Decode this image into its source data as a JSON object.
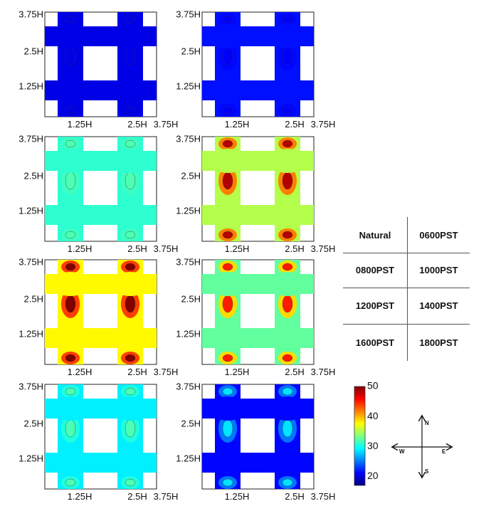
{
  "chart_data": {
    "type": "heatmap",
    "panels": [
      {
        "condition": "Natural",
        "level": 0.1,
        "hot": 0.1
      },
      {
        "condition": "0600PST",
        "level": 0.14,
        "hot": 0.12
      },
      {
        "condition": "0800PST",
        "level": 0.42,
        "hot": 0.45
      },
      {
        "condition": "1000PST",
        "level": 0.55,
        "hot": 0.95
      },
      {
        "condition": "1200PST",
        "level": 0.63,
        "hot": 1.0
      },
      {
        "condition": "1400PST",
        "level": 0.47,
        "hot": 0.85
      },
      {
        "condition": "1600PST",
        "level": 0.36,
        "hot": 0.45
      },
      {
        "condition": "1800PST",
        "level": 0.13,
        "hot": 0.35
      }
    ],
    "x_ticks": [
      "1.25H",
      "2.5H",
      "3.75H"
    ],
    "y_ticks": [
      "3.75H",
      "2.5H",
      "1.25H"
    ],
    "colorbar": {
      "min": 17,
      "max": 50,
      "ticks": [
        20,
        30,
        40,
        50
      ],
      "colormap": "jet"
    }
  },
  "legend_table": {
    "rows": [
      [
        "Natural",
        "0600PST"
      ],
      [
        "0800PST",
        "1000PST"
      ],
      [
        "1200PST",
        "1400PST"
      ],
      [
        "1600PST",
        "1800PST"
      ]
    ]
  },
  "compass": {
    "n": "N",
    "s": "S",
    "e": "E",
    "w": "W"
  }
}
